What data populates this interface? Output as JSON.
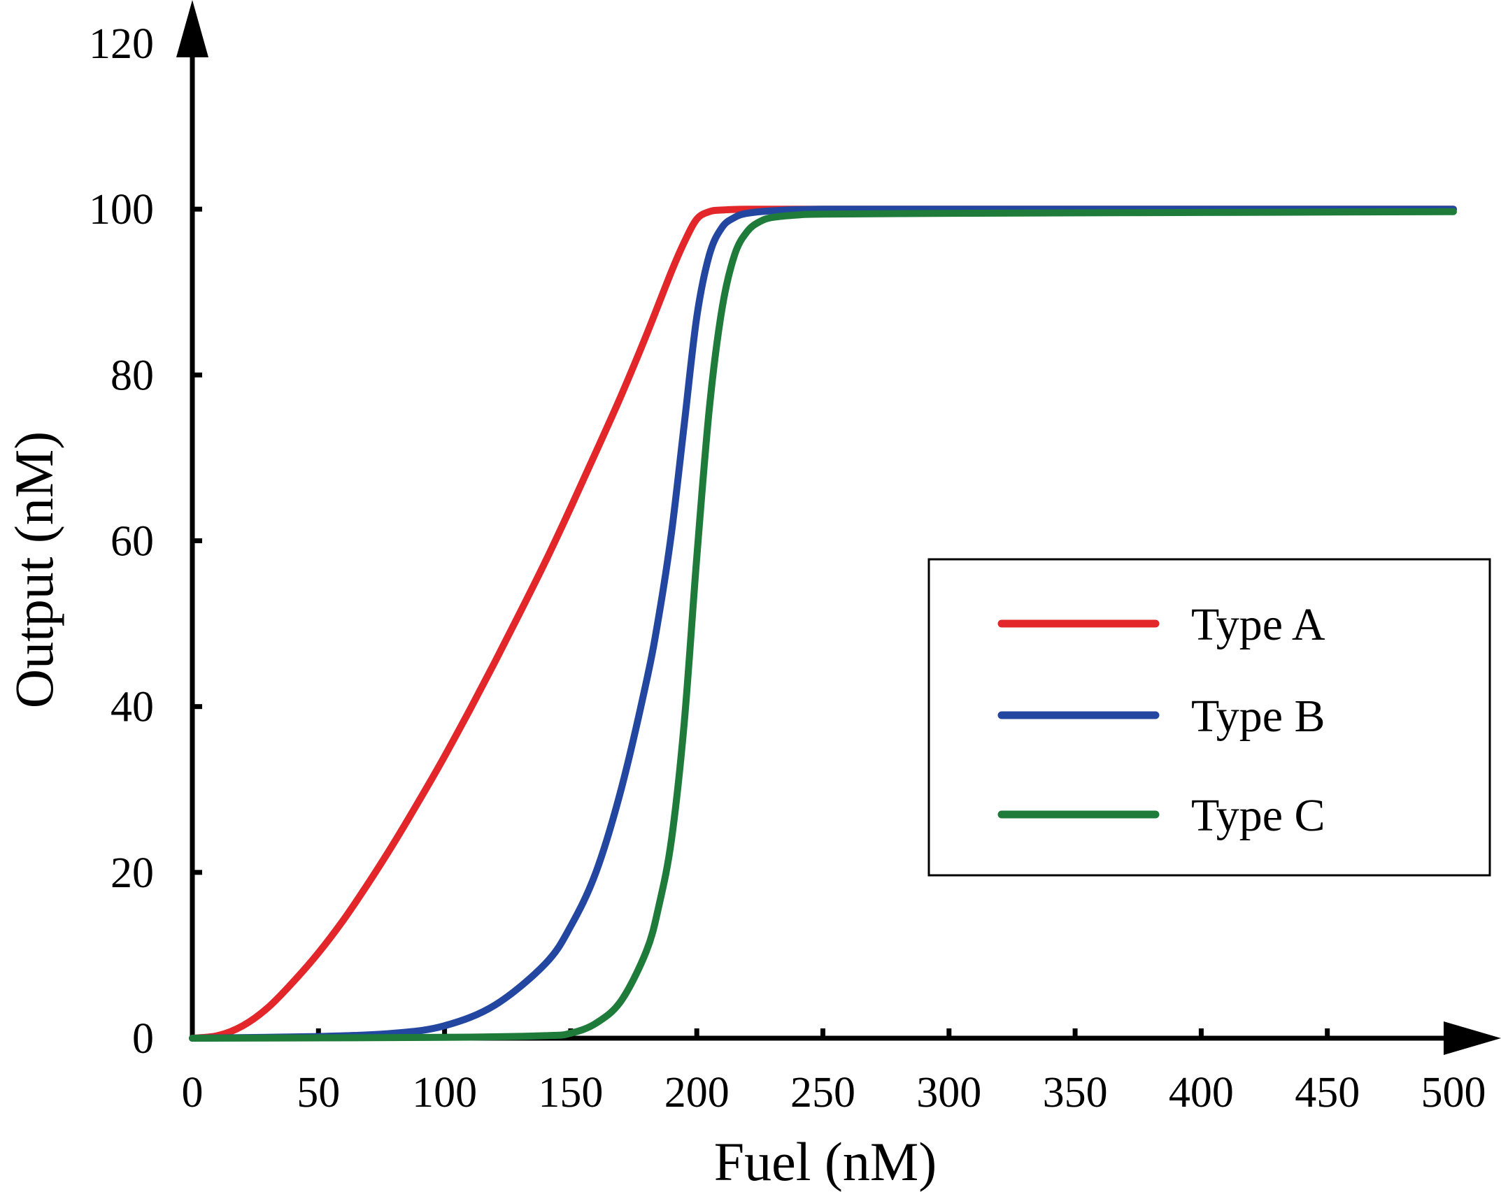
{
  "chart_data": {
    "type": "line",
    "title": "",
    "xlabel": "Fuel (nM)",
    "ylabel": "Output (nM)",
    "xlim": [
      0,
      500
    ],
    "ylim": [
      0,
      120
    ],
    "xticks": [
      0,
      50,
      100,
      150,
      200,
      250,
      300,
      350,
      400,
      450,
      500
    ],
    "yticks": [
      0,
      20,
      40,
      60,
      80,
      100,
      120
    ],
    "grid": false,
    "legend": {
      "position": "center-right"
    },
    "series": [
      {
        "name": "Type A",
        "color": "#e3262a",
        "x": [
          0,
          10,
          20,
          30,
          40,
          50,
          60,
          70,
          80,
          90,
          100,
          110,
          120,
          130,
          140,
          150,
          160,
          170,
          180,
          190,
          195,
          200,
          205,
          210,
          220,
          250,
          300,
          400,
          500
        ],
        "y": [
          0,
          0.3,
          1.5,
          3.7,
          6.8,
          10.3,
          14.3,
          18.8,
          23.6,
          28.7,
          34.0,
          39.6,
          45.4,
          51.4,
          57.5,
          64.0,
          70.7,
          77.5,
          84.8,
          92.5,
          96.0,
          98.8,
          99.7,
          99.9,
          100,
          100,
          100,
          100,
          100
        ]
      },
      {
        "name": "Type B",
        "color": "#2347a1",
        "x": [
          0,
          50,
          80,
          100,
          120,
          140,
          150,
          160,
          170,
          180,
          185,
          190,
          195,
          200,
          205,
          210,
          215,
          220,
          230,
          250,
          300,
          400,
          500
        ],
        "y": [
          0,
          0.2,
          0.6,
          1.5,
          4.0,
          9.0,
          13.5,
          20.0,
          30.0,
          43.0,
          51.0,
          61.0,
          74.0,
          87.0,
          94.5,
          97.8,
          99.0,
          99.5,
          99.8,
          100,
          100,
          100,
          100
        ]
      },
      {
        "name": "Type C",
        "color": "#1e7b3a",
        "x": [
          0,
          100,
          140,
          150,
          160,
          170,
          180,
          185,
          190,
          195,
          200,
          205,
          210,
          215,
          220,
          225,
          230,
          240,
          250,
          300,
          400,
          500
        ],
        "y": [
          0,
          0.1,
          0.3,
          0.6,
          1.8,
          4.5,
          10.5,
          16.0,
          24.0,
          38.0,
          58.0,
          76.0,
          88.0,
          94.5,
          97.3,
          98.5,
          99.0,
          99.3,
          99.4,
          99.5,
          99.6,
          99.7
        ]
      }
    ]
  }
}
